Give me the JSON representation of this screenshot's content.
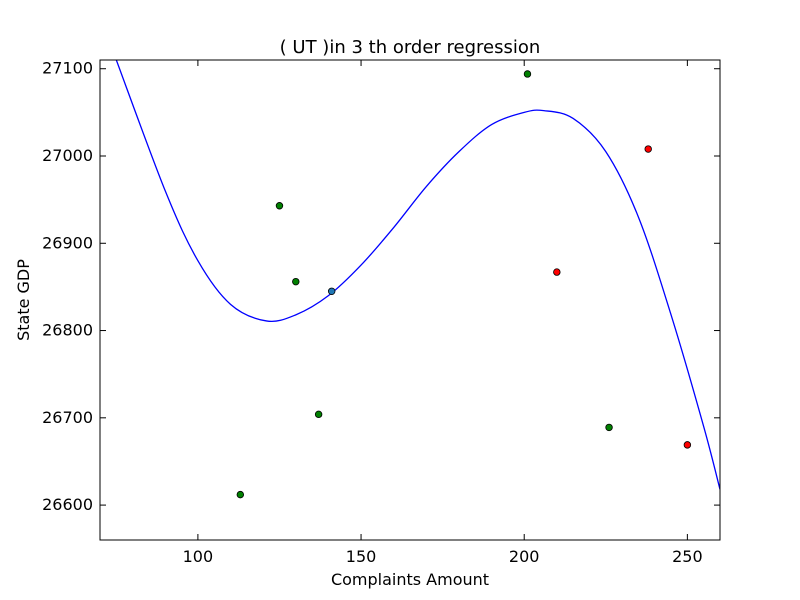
{
  "chart_data": {
    "type": "scatter",
    "title": "(  UT  )in 3 th order regression",
    "xlabel": "Complaints Amount",
    "ylabel": "State GDP",
    "xlim": [
      70,
      260
    ],
    "ylim": [
      26560,
      27110
    ],
    "x_ticks": [
      100,
      150,
      200,
      250
    ],
    "y_ticks": [
      26600,
      26700,
      26800,
      26900,
      27000,
      27100
    ],
    "x_tick_labels": [
      "100",
      "150",
      "200",
      "250"
    ],
    "y_tick_labels": [
      "26600",
      "26700",
      "26800",
      "26900",
      "27000",
      "27100"
    ],
    "grid": false,
    "legend": "none",
    "points": [
      {
        "x": 113,
        "y": 26612,
        "color": "#008000"
      },
      {
        "x": 125,
        "y": 26943,
        "color": "#008000"
      },
      {
        "x": 130,
        "y": 26856,
        "color": "#008000"
      },
      {
        "x": 137,
        "y": 26704,
        "color": "#008000"
      },
      {
        "x": 141,
        "y": 26845,
        "color": "#1f77b4"
      },
      {
        "x": 201,
        "y": 27094,
        "color": "#008000"
      },
      {
        "x": 210,
        "y": 26867,
        "color": "#ff0000"
      },
      {
        "x": 226,
        "y": 26689,
        "color": "#008000"
      },
      {
        "x": 238,
        "y": 27008,
        "color": "#ff0000"
      },
      {
        "x": 250,
        "y": 26669,
        "color": "#ff0000"
      }
    ],
    "regression_curve": {
      "color": "#0000ff",
      "order": 3,
      "samples": [
        {
          "x": 75,
          "y": 27110
        },
        {
          "x": 90,
          "y": 26960
        },
        {
          "x": 100,
          "y": 26880
        },
        {
          "x": 110,
          "y": 26830
        },
        {
          "x": 121,
          "y": 26811
        },
        {
          "x": 130,
          "y": 26818
        },
        {
          "x": 140,
          "y": 26840
        },
        {
          "x": 150,
          "y": 26875
        },
        {
          "x": 160,
          "y": 26918
        },
        {
          "x": 170,
          "y": 26965
        },
        {
          "x": 180,
          "y": 27005
        },
        {
          "x": 190,
          "y": 27036
        },
        {
          "x": 200,
          "y": 27050
        },
        {
          "x": 206,
          "y": 27052
        },
        {
          "x": 215,
          "y": 27043
        },
        {
          "x": 225,
          "y": 27005
        },
        {
          "x": 235,
          "y": 26930
        },
        {
          "x": 245,
          "y": 26818
        },
        {
          "x": 255,
          "y": 26690
        },
        {
          "x": 260,
          "y": 26618
        }
      ]
    }
  }
}
